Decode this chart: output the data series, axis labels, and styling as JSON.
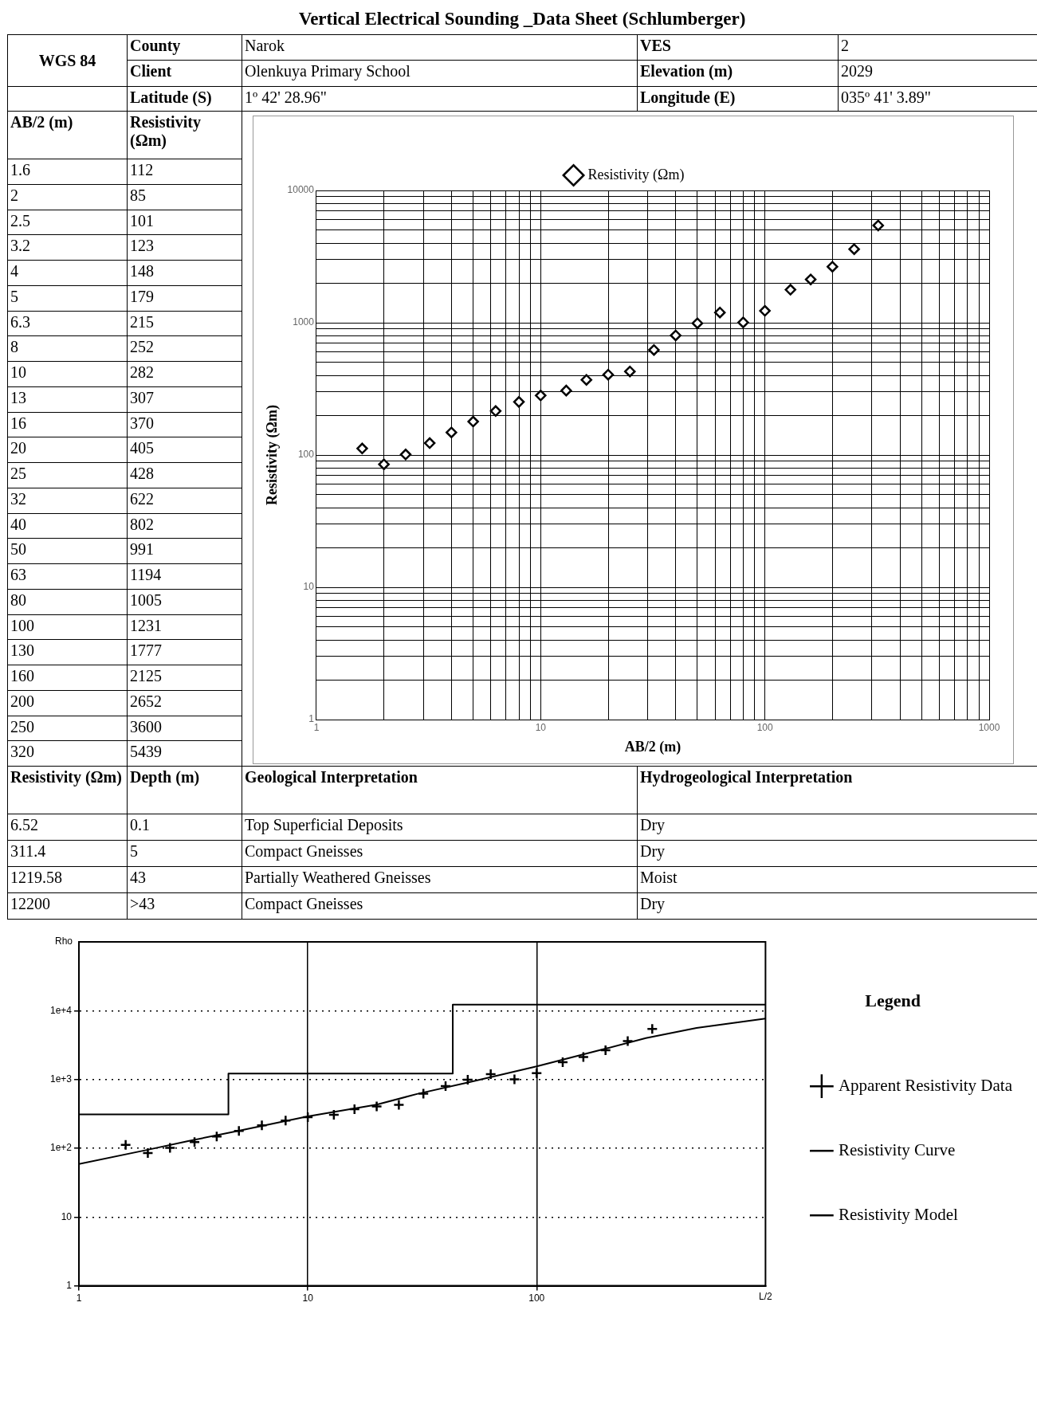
{
  "chart_data": [
    {
      "type": "scatter",
      "title": "Vertical Electrical Sounding _Data Sheet (Schlumberger)",
      "xlabel": "AB/2 (m)",
      "ylabel": "Resistivity (Ωm)",
      "log": "xy",
      "grid": true,
      "legend": "top",
      "marker": "diamond",
      "x": [
        1.6,
        2,
        2.5,
        3.2,
        4,
        5,
        6.3,
        8,
        10,
        13,
        16,
        20,
        25,
        32,
        40,
        50,
        63,
        80,
        100,
        130,
        160,
        200,
        250,
        320
      ],
      "series": [
        {
          "name": "Resistivity (Ωm)",
          "color": "#000000",
          "values": [
            112,
            85,
            101,
            123,
            148,
            179,
            215,
            252,
            282,
            307,
            370,
            405,
            428,
            622,
            802,
            991,
            1194,
            1005,
            1231,
            1777,
            2125,
            2652,
            3600,
            5439
          ]
        }
      ],
      "xlim": [
        1,
        1000
      ],
      "xticks": [
        1,
        {
          "value": 2,
          "label": null
        },
        {
          "value": 3,
          "label": null
        },
        {
          "value": 4,
          "label": null
        },
        {
          "value": 5,
          "label": null
        },
        {
          "value": 6,
          "label": null
        },
        {
          "value": 7,
          "label": null
        },
        {
          "value": 8,
          "label": null
        },
        {
          "value": 9,
          "label": null
        },
        10,
        {
          "value": 20,
          "label": null
        },
        {
          "value": 30,
          "label": null
        },
        {
          "value": 40,
          "label": null
        },
        {
          "value": 50,
          "label": null
        },
        {
          "value": 60,
          "label": null
        },
        {
          "value": 70,
          "label": null
        },
        {
          "value": 80,
          "label": null
        },
        {
          "value": 90,
          "label": null
        },
        100,
        {
          "value": 200,
          "label": null
        },
        {
          "value": 300,
          "label": null
        },
        {
          "value": 400,
          "label": null
        },
        {
          "value": 500,
          "label": null
        },
        {
          "value": 600,
          "label": null
        },
        {
          "value": 700,
          "label": null
        },
        {
          "value": 800,
          "label": null
        },
        {
          "value": 900,
          "label": null
        },
        1000
      ],
      "ylim": [
        1,
        10000
      ],
      "yticks": [
        1,
        {
          "value": 2,
          "label": null
        },
        {
          "value": 3,
          "label": null
        },
        {
          "value": 4,
          "label": null
        },
        {
          "value": 5,
          "label": null
        },
        {
          "value": 6,
          "label": null
        },
        {
          "value": 7,
          "label": null
        },
        {
          "value": 8,
          "label": null
        },
        {
          "value": 9,
          "label": null
        },
        10,
        {
          "value": 20,
          "label": null
        },
        {
          "value": 30,
          "label": null
        },
        {
          "value": 40,
          "label": null
        },
        {
          "value": 50,
          "label": null
        },
        {
          "value": 60,
          "label": null
        },
        {
          "value": 70,
          "label": null
        },
        {
          "value": 80,
          "label": null
        },
        {
          "value": 90,
          "label": null
        },
        100,
        {
          "value": 200,
          "label": null
        },
        {
          "value": 300,
          "label": null
        },
        {
          "value": 400,
          "label": null
        },
        {
          "value": 500,
          "label": null
        },
        {
          "value": 600,
          "label": null
        },
        {
          "value": 700,
          "label": null
        },
        {
          "value": 800,
          "label": null
        },
        {
          "value": 900,
          "label": null
        },
        1000,
        {
          "value": 2000,
          "label": null
        },
        {
          "value": 3000,
          "label": null
        },
        {
          "value": 4000,
          "label": null
        },
        {
          "value": 5000,
          "label": null
        },
        {
          "value": 6000,
          "label": null
        },
        {
          "value": 7000,
          "label": null
        },
        {
          "value": 8000,
          "label": null
        },
        {
          "value": 9000,
          "label": null
        },
        10000
      ],
      "annotations": [
        "WGS 84",
        "County",
        "Narok",
        "VES",
        "2",
        "Client",
        "Olenkuya Primary School",
        "Elevation (m)",
        "2029",
        "Latitude (S)",
        "1º 42' 28.96\"",
        "Longitude (E)",
        "035º 41' 3.89\"",
        "AB/2 (m)",
        "Resistivity (Ωm)",
        "1.6",
        "112",
        "2",
        "85",
        "2.5",
        "101",
        "3.2",
        "123",
        "4",
        "148",
        "5",
        "179",
        "6.3",
        "215",
        "8",
        "252",
        "10",
        "282",
        "13",
        "307",
        "16",
        "370",
        "20",
        "405",
        "25",
        "428",
        "32",
        "622",
        "40",
        "802",
        "50",
        "991",
        "63",
        "1194",
        "80",
        "1005",
        "100",
        "1231",
        "130",
        "1777",
        "160",
        "2125",
        "200",
        "2652",
        "250",
        "3600",
        "320",
        "5439",
        "Resistivity (Ωm)",
        "Depth (m)",
        "Geological Interpretation",
        "Hydrogeological Interpretation",
        "6.52",
        "0.1",
        "Top Superficial Deposits",
        "Dry",
        "311.4",
        "5",
        "Compact Gneisses",
        "Dry",
        "1219.58",
        "43",
        "Partially Weathered Gneisses",
        "Moist",
        "12200",
        ">43",
        "Compact Gneisses",
        "Dry"
      ]
    },
    {
      "type": "scatter",
      "xlabel": "L/2",
      "ylabel": "Rho",
      "log": "xy",
      "grid": true,
      "legend": "right",
      "legend_title": "Legend",
      "xlim": [
        1,
        1000
      ],
      "xticks": [
        1,
        10,
        100
      ],
      "ylim": [
        1,
        100000
      ],
      "yticks": [
        1,
        10,
        {
          "value": 100,
          "label": "1e+2"
        },
        {
          "value": 1000,
          "label": "1e+3"
        },
        {
          "value": 10000,
          "label": "1e+4"
        }
      ],
      "series": [
        {
          "name": "Apparent Resistivity Data",
          "type": "scatter",
          "marker": "cross",
          "color": "#000000",
          "x": [
            1.6,
            2,
            2.5,
            3.2,
            4,
            5,
            6.3,
            8,
            10,
            13,
            16,
            20,
            25,
            32,
            40,
            50,
            63,
            80,
            100,
            130,
            160,
            200,
            250,
            320
          ],
          "values": [
            112,
            85,
            101,
            123,
            148,
            179,
            215,
            252,
            282,
            307,
            370,
            405,
            428,
            622,
            802,
            991,
            1194,
            1005,
            1231,
            1777,
            2125,
            2652,
            3600,
            5439
          ]
        },
        {
          "name": "Resistivity Curve",
          "type": "line",
          "marker": "none",
          "color": "#000000",
          "x": [
            1,
            2,
            3,
            5,
            10,
            20,
            30,
            50,
            100,
            200,
            300,
            500,
            1000
          ],
          "values": [
            59,
            95,
            127,
            180,
            290,
            430,
            615,
            900,
            1550,
            2800,
            4000,
            5600,
            7660
          ]
        },
        {
          "name": "Resistivity Model",
          "type": "step",
          "marker": "none",
          "color": "#000000",
          "x": [
            1,
            4.5,
            43,
            1000
          ],
          "values": [
            311.4,
            1219.58,
            12200,
            12200
          ]
        }
      ]
    }
  ]
}
